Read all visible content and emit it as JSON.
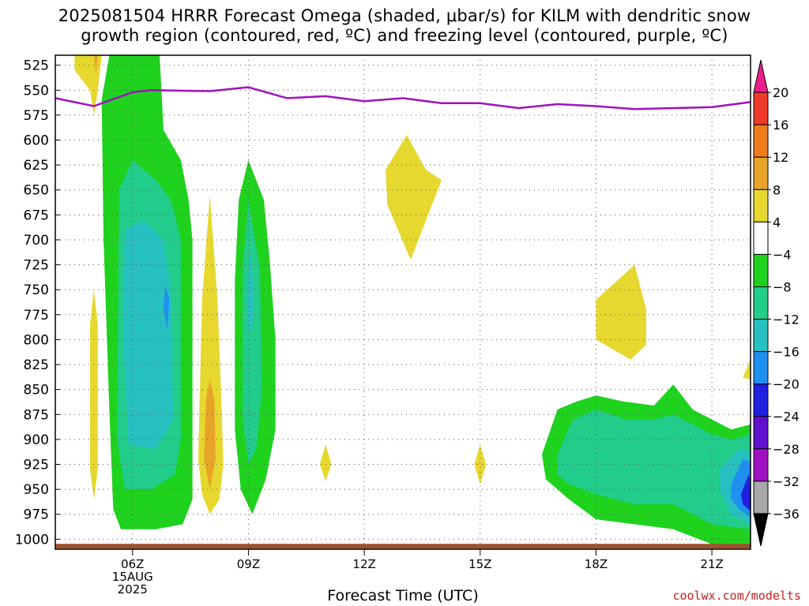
{
  "title_line1": "2025081504 HRRR Forecast Omega (shaded, μbar/s) for KILM with dendritic snow",
  "title_line2": "growth region (contoured, red, ºC) and freezing level (contoured, purple, ºC)",
  "credit": "coolwx.com/modelts",
  "chart_data": {
    "type": "area",
    "title": "2025081504 HRRR Forecast Omega (shaded, μbar/s) for KILM with dendritic snow growth region (contoured, red, ºC) and freezing level (contoured, purple, ºC)",
    "xlabel": "Forecast Time (UTC)",
    "x_ticks": [
      {
        "hour": 6,
        "label": "06Z",
        "date_lines": [
          "15AUG",
          "2025"
        ]
      },
      {
        "hour": 9,
        "label": "09Z"
      },
      {
        "hour": 12,
        "label": "12Z"
      },
      {
        "hour": 15,
        "label": "15Z"
      },
      {
        "hour": 18,
        "label": "18Z"
      },
      {
        "hour": 21,
        "label": "21Z"
      }
    ],
    "xlim": [
      4,
      22
    ],
    "y_axis_note": "pressure (mb), reversed",
    "y_ticks": [
      525,
      550,
      575,
      600,
      625,
      650,
      675,
      700,
      725,
      750,
      775,
      800,
      825,
      850,
      875,
      900,
      925,
      950,
      975,
      1000
    ],
    "ylim": [
      1010,
      515
    ],
    "grid": true,
    "colorbar": {
      "labels": [
        "20",
        "16",
        "12",
        "8",
        "4",
        "−4",
        "−8",
        "−12",
        "−16",
        "−20",
        "−24",
        "−28",
        "−32",
        "−36"
      ],
      "colors": [
        "#ee1c8c",
        "#f03a2a",
        "#ee7c1c",
        "#e8a428",
        "#e6d82e",
        "#ffffff",
        "#1ed21e",
        "#22cc8a",
        "#26c0c0",
        "#1e90f0",
        "#2020e0",
        "#6010d0",
        "#a010c0",
        "#a8a8a8",
        "#000000"
      ]
    },
    "freezing_level": {
      "color": "#a010c0",
      "x": [
        4.0,
        5.0,
        6.0,
        6.5,
        8.0,
        9.0,
        10.0,
        11.0,
        12.0,
        13.0,
        14.0,
        15.0,
        16.0,
        17.0,
        18.0,
        19.0,
        20.0,
        21.0,
        22.0
      ],
      "y": [
        558,
        566,
        552,
        550,
        551,
        547,
        558,
        556,
        561,
        558,
        563,
        563,
        568,
        564,
        566,
        569,
        568,
        567,
        562
      ]
    },
    "omega_regions": [
      {
        "level": "4 to 8",
        "color": "#e6d82e",
        "polygon": [
          [
            4.5,
            515
          ],
          [
            5.2,
            515
          ],
          [
            5.1,
            550
          ],
          [
            5.0,
            575
          ],
          [
            4.9,
            550
          ],
          [
            4.5,
            530
          ]
        ]
      },
      {
        "level": "8 to 12",
        "color": "#e8a428",
        "polygon": [
          [
            5.0,
            515
          ],
          [
            5.1,
            515
          ],
          [
            5.05,
            535
          ]
        ]
      },
      {
        "level": "4 to 8",
        "color": "#e6d82e",
        "polygon": [
          [
            5.0,
            750
          ],
          [
            5.1,
            785
          ],
          [
            5.1,
            930
          ],
          [
            5.0,
            960
          ],
          [
            4.9,
            930
          ],
          [
            4.9,
            785
          ]
        ]
      },
      {
        "level": "-8 to -4",
        "color": "#1ed21e",
        "polygon": [
          [
            6.2,
            515
          ],
          [
            6.7,
            515
          ],
          [
            6.75,
            550
          ],
          [
            6.8,
            590
          ],
          [
            7.25,
            620
          ],
          [
            7.45,
            660
          ],
          [
            7.55,
            700
          ],
          [
            7.55,
            960
          ],
          [
            7.3,
            985
          ],
          [
            6.6,
            990
          ],
          [
            5.7,
            990
          ],
          [
            5.5,
            970
          ],
          [
            5.4,
            870
          ],
          [
            5.25,
            700
          ],
          [
            5.2,
            560
          ],
          [
            5.4,
            515
          ]
        ]
      },
      {
        "level": "-12 to -8",
        "color": "#22cc8a",
        "polygon": [
          [
            5.65,
            650
          ],
          [
            6.0,
            620
          ],
          [
            6.6,
            640
          ],
          [
            7.0,
            660
          ],
          [
            7.25,
            700
          ],
          [
            7.25,
            900
          ],
          [
            7.1,
            935
          ],
          [
            6.5,
            950
          ],
          [
            5.8,
            950
          ],
          [
            5.6,
            900
          ]
        ]
      },
      {
        "level": "-16 to -12",
        "color": "#26c0c0",
        "polygon": [
          [
            5.8,
            690
          ],
          [
            6.3,
            680
          ],
          [
            6.8,
            700
          ],
          [
            7.0,
            750
          ],
          [
            7.05,
            880
          ],
          [
            6.6,
            910
          ],
          [
            5.9,
            905
          ],
          [
            5.75,
            800
          ]
        ]
      },
      {
        "level": "-20 to -16",
        "color": "#1e90f0",
        "polygon": [
          [
            6.85,
            745
          ],
          [
            6.95,
            760
          ],
          [
            6.9,
            790
          ],
          [
            6.8,
            770
          ]
        ]
      },
      {
        "level": "4 to 8",
        "color": "#e6d82e",
        "polygon": [
          [
            8.0,
            655
          ],
          [
            8.2,
            760
          ],
          [
            8.3,
            860
          ],
          [
            8.35,
            925
          ],
          [
            8.25,
            960
          ],
          [
            8.0,
            975
          ],
          [
            7.8,
            955
          ],
          [
            7.7,
            920
          ],
          [
            7.8,
            760
          ]
        ]
      },
      {
        "level": "8 to 12",
        "color": "#e8a428",
        "polygon": [
          [
            8.0,
            840
          ],
          [
            8.12,
            860
          ],
          [
            8.15,
            920
          ],
          [
            8.0,
            950
          ],
          [
            7.85,
            920
          ],
          [
            7.9,
            860
          ]
        ]
      },
      {
        "level": "-8 to -4",
        "color": "#1ed21e",
        "polygon": [
          [
            9.0,
            620
          ],
          [
            9.4,
            660
          ],
          [
            9.55,
            720
          ],
          [
            9.7,
            800
          ],
          [
            9.7,
            890
          ],
          [
            9.45,
            940
          ],
          [
            9.1,
            975
          ],
          [
            8.8,
            950
          ],
          [
            8.65,
            890
          ],
          [
            8.65,
            740
          ],
          [
            8.75,
            660
          ]
        ]
      },
      {
        "level": "-12 to -8",
        "color": "#22cc8a",
        "polygon": [
          [
            9.0,
            660
          ],
          [
            9.3,
            730
          ],
          [
            9.35,
            850
          ],
          [
            9.2,
            910
          ],
          [
            9.0,
            925
          ],
          [
            8.85,
            880
          ],
          [
            8.85,
            730
          ]
        ]
      },
      {
        "level": "-16 to -12",
        "color": "#26c0c0",
        "polygon": [
          [
            9.05,
            710
          ],
          [
            9.15,
            760
          ],
          [
            9.1,
            790
          ],
          [
            9.0,
            790
          ],
          [
            8.95,
            760
          ]
        ]
      },
      {
        "level": "4 to 8",
        "color": "#e6d82e",
        "polygon": [
          [
            11.0,
            905
          ],
          [
            11.15,
            925
          ],
          [
            11.0,
            942
          ],
          [
            10.85,
            925
          ]
        ]
      },
      {
        "level": "4 to 8",
        "color": "#e6d82e",
        "polygon": [
          [
            13.1,
            595
          ],
          [
            13.6,
            630
          ],
          [
            14.0,
            640
          ],
          [
            13.2,
            720
          ],
          [
            12.6,
            665
          ],
          [
            12.55,
            630
          ]
        ]
      },
      {
        "level": "4 to 8",
        "color": "#e6d82e",
        "polygon": [
          [
            15.0,
            905
          ],
          [
            15.15,
            925
          ],
          [
            15.0,
            945
          ],
          [
            14.85,
            925
          ]
        ]
      },
      {
        "level": "4 to 8",
        "color": "#e6d82e",
        "polygon": [
          [
            19.0,
            725
          ],
          [
            19.3,
            770
          ],
          [
            19.3,
            805
          ],
          [
            18.9,
            820
          ],
          [
            18.0,
            800
          ],
          [
            18.0,
            760
          ]
        ]
      },
      {
        "level": "4 to 8",
        "color": "#e6d82e",
        "polygon": [
          [
            22.0,
            820
          ],
          [
            22.0,
            840
          ],
          [
            21.8,
            838
          ]
        ]
      },
      {
        "level": "-8 to -4",
        "color": "#1ed21e",
        "polygon": [
          [
            16.6,
            915
          ],
          [
            17.0,
            870
          ],
          [
            17.5,
            862
          ],
          [
            18.0,
            856
          ],
          [
            18.7,
            862
          ],
          [
            19.5,
            866
          ],
          [
            20.0,
            845
          ],
          [
            20.5,
            870
          ],
          [
            21.0,
            880
          ],
          [
            21.5,
            890
          ],
          [
            22.0,
            885
          ],
          [
            22.0,
            1005
          ],
          [
            21.0,
            1005
          ],
          [
            20.0,
            990
          ],
          [
            19.0,
            985
          ],
          [
            18.0,
            980
          ],
          [
            17.3,
            960
          ],
          [
            16.7,
            940
          ]
        ]
      },
      {
        "level": "-12 to -8",
        "color": "#22cc8a",
        "polygon": [
          [
            17.0,
            915
          ],
          [
            17.4,
            880
          ],
          [
            18.0,
            870
          ],
          [
            18.8,
            880
          ],
          [
            19.5,
            880
          ],
          [
            20.0,
            875
          ],
          [
            20.5,
            885
          ],
          [
            21.0,
            895
          ],
          [
            21.5,
            900
          ],
          [
            22.0,
            895
          ],
          [
            22.0,
            990
          ],
          [
            21.0,
            985
          ],
          [
            20.0,
            965
          ],
          [
            19.0,
            965
          ],
          [
            18.0,
            955
          ],
          [
            17.3,
            945
          ],
          [
            17.0,
            935
          ]
        ]
      },
      {
        "level": "-16 to -12",
        "color": "#26c0c0",
        "polygon": [
          [
            21.2,
            930
          ],
          [
            21.7,
            910
          ],
          [
            22.0,
            912
          ],
          [
            22.0,
            985
          ],
          [
            21.5,
            975
          ],
          [
            21.2,
            950
          ]
        ]
      },
      {
        "level": "-20 to -16",
        "color": "#1e90f0",
        "polygon": [
          [
            21.5,
            945
          ],
          [
            21.8,
            920
          ],
          [
            22.0,
            922
          ],
          [
            22.0,
            978
          ],
          [
            21.7,
            970
          ],
          [
            21.5,
            960
          ]
        ]
      },
      {
        "level": "-24 to -20",
        "color": "#2020e0",
        "polygon": [
          [
            21.75,
            955
          ],
          [
            21.95,
            935
          ],
          [
            22.0,
            940
          ],
          [
            22.0,
            972
          ],
          [
            21.8,
            965
          ]
        ]
      }
    ],
    "surface": {
      "color": "#a0522d",
      "y": [
        1007,
        1007
      ],
      "x": [
        4.0,
        22.0
      ]
    }
  }
}
